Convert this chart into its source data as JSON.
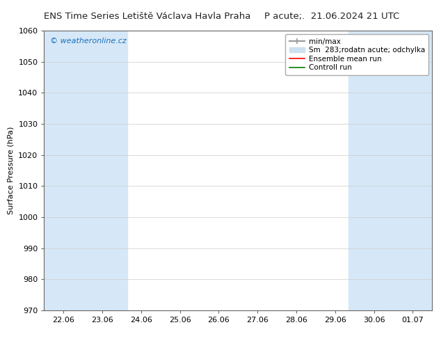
{
  "title_left": "ENS Time Series Letiště Václava Havla Praha",
  "title_right": "P acute;.  21.06.2024 21 UTC",
  "ylabel": "Surface Pressure (hPa)",
  "ylim": [
    970,
    1060
  ],
  "yticks": [
    970,
    980,
    990,
    1000,
    1010,
    1020,
    1030,
    1040,
    1050,
    1060
  ],
  "x_labels": [
    "22.06",
    "23.06",
    "24.06",
    "25.06",
    "26.06",
    "27.06",
    "28.06",
    "29.06",
    "30.06",
    "01.07"
  ],
  "x_positions": [
    0,
    1,
    2,
    3,
    4,
    5,
    6,
    7,
    8,
    9
  ],
  "xlim": [
    -0.5,
    9.5
  ],
  "shaded_bands": [
    {
      "x_start": -0.5,
      "x_end": 1.5,
      "color": "#d6e8f7"
    },
    {
      "x_start": 7.5,
      "x_end": 9.5,
      "color": "#d6e8f7"
    }
  ],
  "narrow_bands": [
    {
      "x_start": 1.5,
      "x_end": 1.65,
      "color": "#d6e8f7"
    },
    {
      "x_start": 7.35,
      "x_end": 7.5,
      "color": "#d6e8f7"
    }
  ],
  "watermark_text": "© weatheronline.cz",
  "watermark_color": "#1a6fba",
  "watermark_fontsize": 8,
  "legend_entries": [
    {
      "label": "min/max",
      "type": "errorbar",
      "color": "#999999",
      "lw": 1.5
    },
    {
      "label": "Sm  283;rodatn acute; odchylka",
      "type": "patch",
      "color": "#cce0f0"
    },
    {
      "label": "Ensemble mean run",
      "type": "line",
      "color": "red",
      "lw": 1.2
    },
    {
      "label": "Controll run",
      "type": "line",
      "color": "green",
      "lw": 1.2
    }
  ],
  "bg_color": "#ffffff",
  "plot_bg_color": "#ffffff",
  "grid_color": "#cccccc",
  "spine_color": "#666666",
  "title_fontsize": 9.5,
  "axis_fontsize": 8,
  "tick_fontsize": 8,
  "legend_fontsize": 7.5
}
